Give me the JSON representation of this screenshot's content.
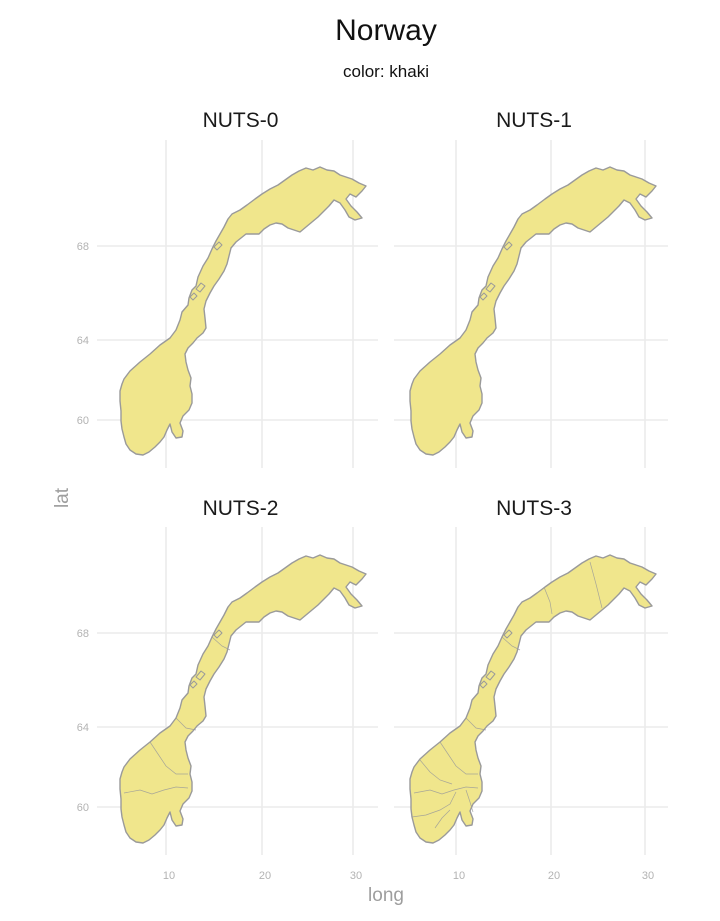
{
  "title": "Norway",
  "subtitle": "color: khaki",
  "x_axis_label": "long",
  "y_axis_label": "lat",
  "x_ticks": [
    "10",
    "20",
    "30"
  ],
  "y_ticks": [
    "68",
    "64",
    "60"
  ],
  "fill_color": "#F0E68C",
  "border_color": "#9A9A9A",
  "panels": [
    {
      "label": "NUTS-0",
      "level": 0
    },
    {
      "label": "NUTS-1",
      "level": 1
    },
    {
      "label": "NUTS-2",
      "level": 2
    },
    {
      "label": "NUTS-3",
      "level": 3
    }
  ]
}
